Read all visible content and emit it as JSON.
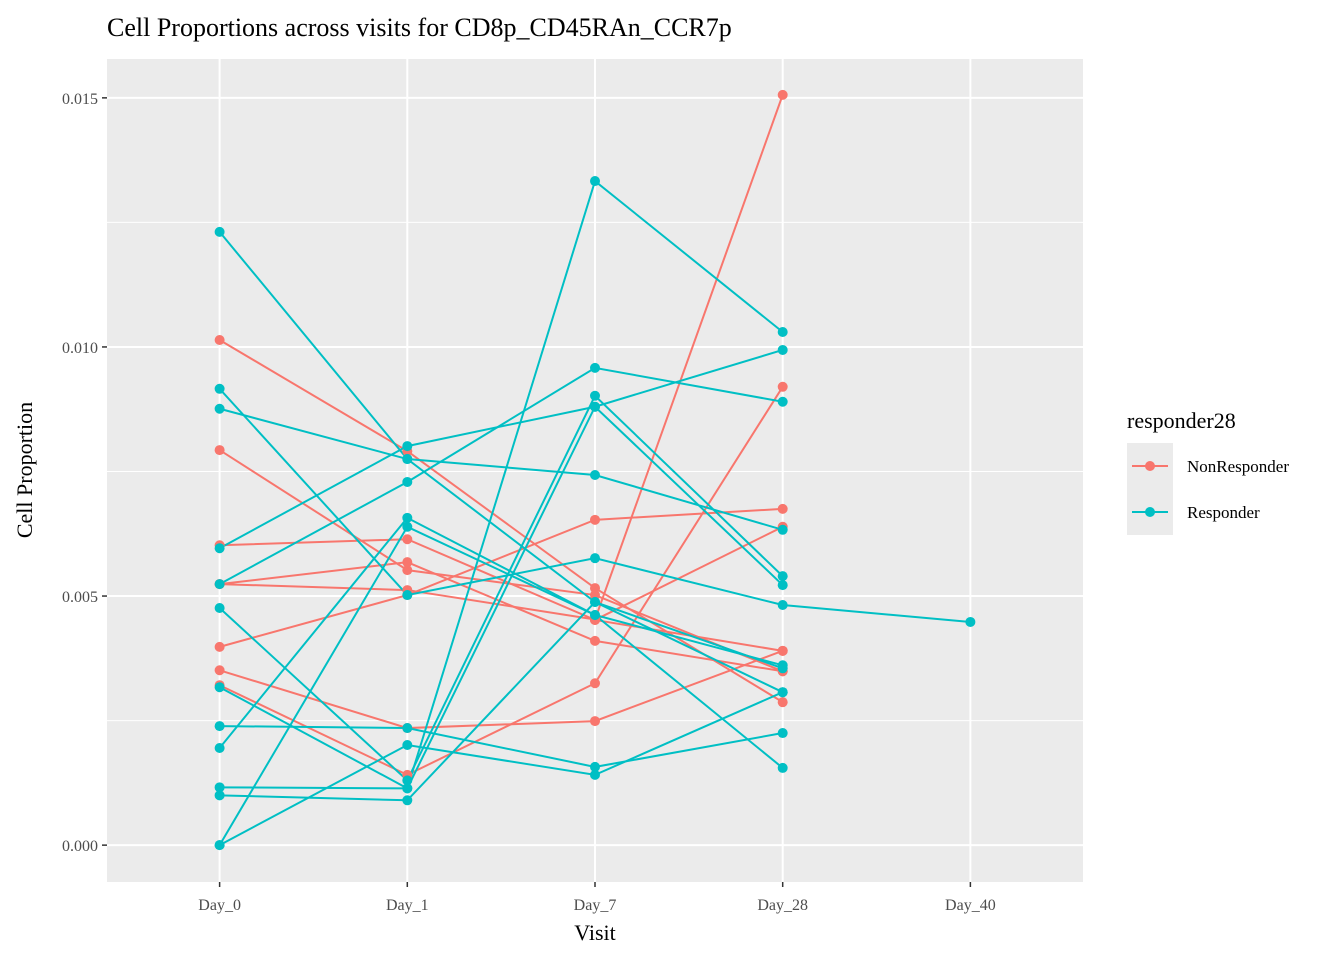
{
  "chart_data": {
    "type": "line",
    "title": "Cell Proportions across visits for CD8p_CD45RAn_CCR7p",
    "x_label": "Visit",
    "y_label": "Cell Proportion",
    "legend_title": "responder28",
    "categories": [
      "Day_0",
      "Day_1",
      "Day_7",
      "Day_28",
      "Day_40"
    ],
    "ylim": [
      -0.00074,
      0.01578
    ],
    "yticks": [
      {
        "value": 0,
        "label": "0.000"
      },
      {
        "value": 0.005,
        "label": "0.005"
      },
      {
        "value": 0.01,
        "label": "0.010"
      },
      {
        "value": 0.015,
        "label": "0.015"
      }
    ],
    "yminor": [
      0.0025,
      0.0075,
      0.0125
    ],
    "grid": true,
    "groups": [
      {
        "name": "NonResponder",
        "color": "#F8766D",
        "lines": [
          [
            0.01014,
            0.00791,
            0.00516,
            0.00287,
            null
          ],
          [
            0.00793,
            0.00552,
            0.00502,
            0.00349,
            null
          ],
          [
            0.00602,
            0.00614,
            0.00452,
            0.0039,
            null
          ],
          [
            0.00524,
            0.00568,
            0.0041,
            0.00349,
            null
          ],
          [
            0.00524,
            0.00512,
            0.00453,
            0.01506,
            null
          ],
          [
            0.00398,
            0.00502,
            0.00653,
            0.00675,
            null
          ],
          [
            0.00351,
            0.00235,
            0.00249,
            0.0039,
            null
          ],
          [
            0.00321,
            0.00141,
            0.00325,
            0.0092,
            null
          ],
          [
            null,
            null,
            0.00452,
            0.00639,
            null
          ]
        ]
      },
      {
        "name": "Responder",
        "color": "#00BFC4",
        "lines": [
          [
            0.01231,
            0.00775,
            0.00488,
            0.00307,
            null
          ],
          [
            0.00876,
            0.00775,
            0.00743,
            0.00633,
            null
          ],
          [
            0.00916,
            0.00502,
            0.00576,
            0.00482,
            0.00448
          ],
          [
            0.00596,
            0.00801,
            0.0088,
            0.00994,
            null
          ],
          [
            0.00524,
            0.00729,
            0.00958,
            0.0089,
            null
          ],
          [
            0.00476,
            0.0013,
            0.00902,
            0.0054,
            null
          ],
          [
            0.00317,
            0.00114,
            0.0088,
            0.00522,
            null
          ],
          [
            0.00239,
            0.00235,
            0.00157,
            0.00225,
            null
          ],
          [
            0.00195,
            0.00657,
            0.00462,
            0.00361,
            null
          ],
          [
            0.00116,
            0.00114,
            0.01333,
            0.0103,
            null
          ],
          [
            0.001,
            0.0009,
            0.00488,
            0.00355,
            null
          ],
          [
            0,
            0.00639,
            0.00462,
            0.00155,
            null
          ],
          [
            0,
            0.00201,
            0.00141,
            0.00307,
            null
          ]
        ]
      }
    ]
  }
}
